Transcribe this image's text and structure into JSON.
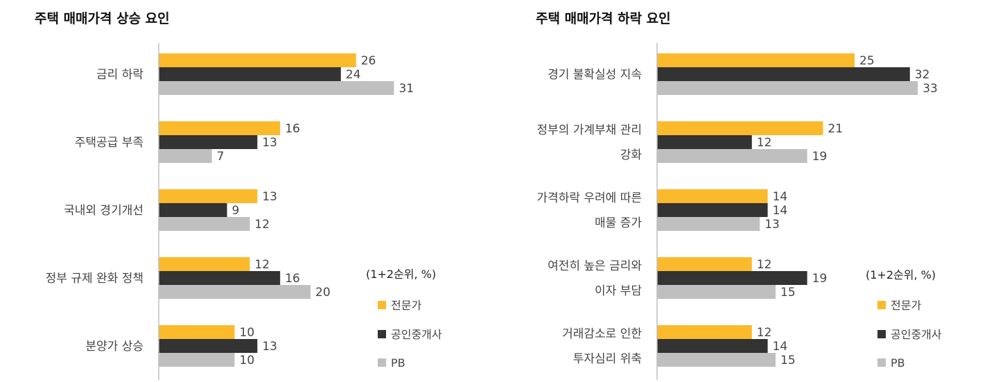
{
  "colors": {
    "expert": "#FBBA2B",
    "broker": "#333333",
    "pb": "#BFBFBF",
    "axis": "#BFBFBF"
  },
  "chart_data": [
    {
      "type": "bar",
      "orientation": "horizontal",
      "title": "주택 매매가격 상승 요인",
      "unit_note": "(1+2순위, %)",
      "categories": [
        [
          "금리 하락"
        ],
        [
          "주택공급 부족"
        ],
        [
          "국내외 경기개선"
        ],
        [
          "정부 규제 완화 정책"
        ],
        [
          "분양가 상승"
        ]
      ],
      "series": [
        {
          "name": "전문가",
          "values": [
            26,
            16,
            13,
            12,
            10
          ]
        },
        {
          "name": "공인중개사",
          "values": [
            24,
            13,
            9,
            16,
            13
          ]
        },
        {
          "name": "PB",
          "values": [
            31,
            7,
            12,
            20,
            10
          ]
        }
      ],
      "legend": "right"
    },
    {
      "type": "bar",
      "orientation": "horizontal",
      "title": "주택 매매가격 하락 요인",
      "unit_note": "(1+2순위, %)",
      "categories": [
        [
          "경기 불확실성 지속"
        ],
        [
          "정부의 가계부채 관리",
          "강화"
        ],
        [
          "가격하락 우려에 따른",
          "매물 증가"
        ],
        [
          "여전히 높은 금리와",
          "이자 부담"
        ],
        [
          "거래감소로 인한",
          "투자심리 위축"
        ]
      ],
      "series": [
        {
          "name": "전문가",
          "values": [
            25,
            21,
            14,
            12,
            12
          ]
        },
        {
          "name": "공인중개사",
          "values": [
            32,
            12,
            14,
            19,
            14
          ]
        },
        {
          "name": "PB",
          "values": [
            33,
            19,
            13,
            15,
            15
          ]
        }
      ],
      "legend": "right"
    }
  ]
}
